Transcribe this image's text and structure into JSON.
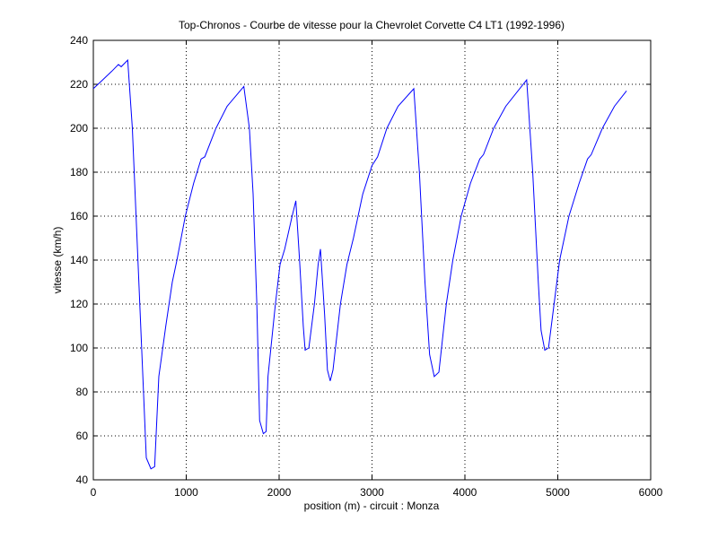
{
  "chart_data": {
    "type": "line",
    "title": "Top-Chronos - Courbe de vitesse pour la Chevrolet Corvette C4 LT1 (1992-1996)",
    "x_label": "position (m) - circuit : Monza",
    "y_label": "vitesse (km/h)",
    "x": [
      0,
      100,
      200,
      270,
      300,
      370,
      420,
      470,
      520,
      570,
      620,
      660,
      705,
      780,
      850,
      900,
      990,
      1080,
      1160,
      1200,
      1320,
      1440,
      1620,
      1680,
      1720,
      1760,
      1790,
      1830,
      1860,
      1880,
      1960,
      2010,
      2060,
      2140,
      2180,
      2220,
      2260,
      2280,
      2320,
      2380,
      2420,
      2445,
      2490,
      2520,
      2550,
      2580,
      2660,
      2730,
      2800,
      2900,
      3000,
      3060,
      3160,
      3280,
      3450,
      3510,
      3570,
      3620,
      3670,
      3720,
      3800,
      3870,
      3960,
      4060,
      4160,
      4200,
      4310,
      4440,
      4665,
      4730,
      4790,
      4820,
      4860,
      4900,
      4960,
      5020,
      5120,
      5230,
      5320,
      5360,
      5480,
      5610,
      5740
    ],
    "series": [
      {
        "name": "vitesse",
        "color": "#0000ff",
        "values": [
          218,
          222,
          226,
          229,
          228,
          231,
          200,
          150,
          100,
          50,
          45,
          46,
          87,
          110,
          130,
          140,
          160,
          175,
          186,
          187,
          200,
          210,
          219,
          200,
          170,
          120,
          67,
          61,
          62,
          87,
          120,
          138,
          145,
          160,
          167,
          140,
          110,
          99,
          100,
          120,
          138,
          145,
          115,
          90,
          85,
          90,
          120,
          138,
          150,
          170,
          183,
          187,
          200,
          210,
          218,
          180,
          130,
          97,
          87,
          89,
          120,
          140,
          160,
          175,
          186,
          188,
          200,
          210,
          222,
          180,
          130,
          108,
          99,
          100,
          120,
          140,
          160,
          175,
          186,
          188,
          200,
          210,
          217
        ]
      }
    ],
    "xlim": [
      0,
      6000
    ],
    "xticks": [
      0,
      1000,
      2000,
      3000,
      4000,
      5000,
      6000
    ],
    "ylim": [
      40,
      240
    ],
    "yticks": [
      40,
      60,
      80,
      100,
      120,
      140,
      160,
      180,
      200,
      220,
      240
    ],
    "grid": true
  }
}
